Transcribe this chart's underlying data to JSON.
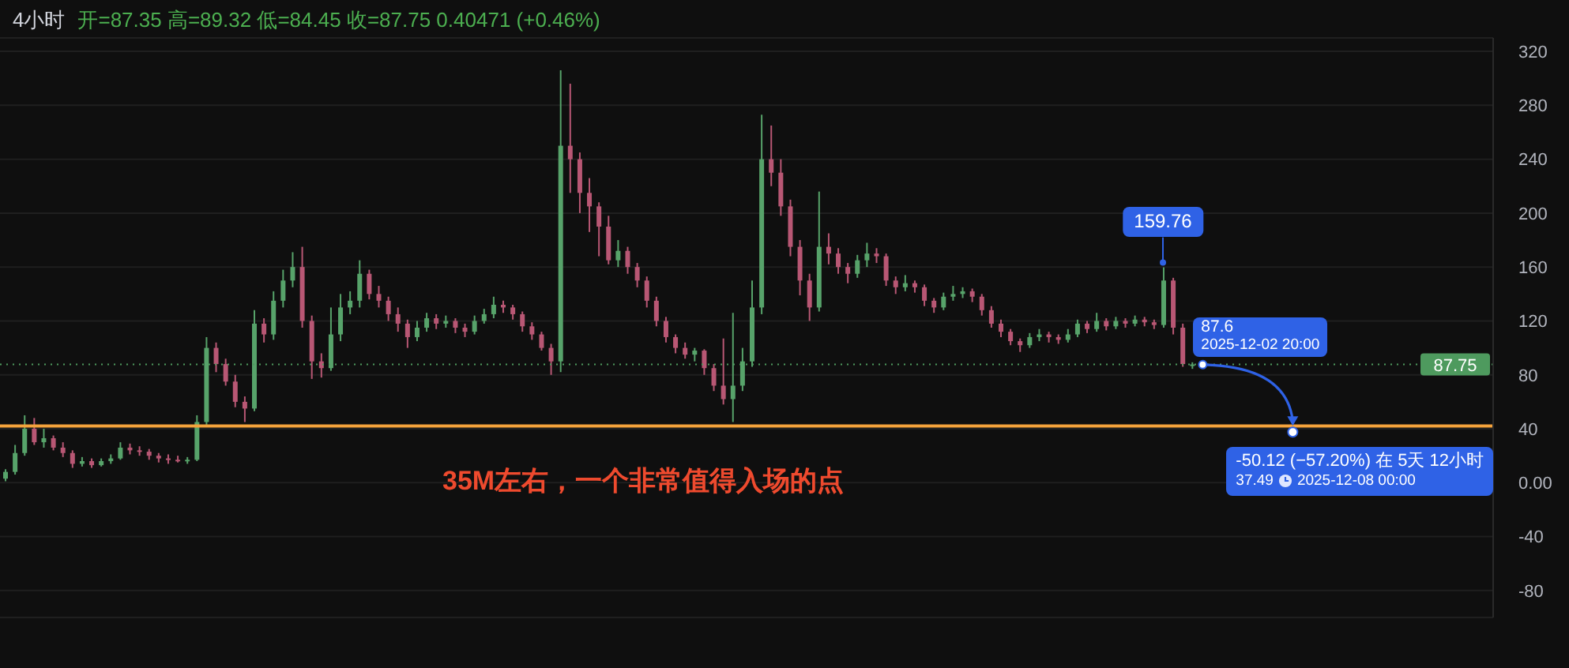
{
  "chart_data": {
    "type": "candlestick",
    "title": "4小时",
    "subtitle": "开=87.35 高=89.32 低=84.45 收=87.75 0.40471 (+0.46%)",
    "categories": [
      null,
      null,
      null,
      null,
      null,
      null,
      null,
      null,
      null,
      null,
      null,
      null,
      null,
      null,
      null,
      null,
      null,
      null,
      null,
      null,
      null,
      null,
      null,
      null,
      null,
      null,
      null,
      null,
      null,
      null,
      null,
      null,
      null,
      null,
      null,
      null,
      null,
      null,
      null,
      null,
      null,
      null,
      null,
      null,
      null,
      null,
      null,
      null,
      null,
      null,
      null,
      null,
      null,
      null,
      null,
      null,
      null,
      null,
      null,
      null,
      null,
      null,
      null,
      null,
      null,
      null,
      null,
      null,
      null,
      null,
      null,
      null,
      null,
      null,
      null,
      null,
      null,
      null,
      null,
      null,
      null,
      null,
      null,
      null,
      null,
      null,
      null,
      null,
      null,
      null,
      null,
      null,
      null,
      null,
      null,
      null,
      null,
      null,
      null,
      null,
      null,
      null,
      null,
      null,
      null,
      null,
      null,
      null,
      null,
      null,
      null,
      null,
      null,
      null,
      null,
      null,
      null,
      null,
      null,
      null,
      null,
      null,
      null,
      null,
      null,
      null,
      null,
      null,
      null,
      null,
      null,
      null,
      null,
      null,
      null,
      null,
      null,
      null,
      null,
      null,
      null,
      null,
      null,
      null,
      null,
      null,
      null,
      null,
      null,
      null,
      null,
      null,
      null,
      null,
      null,
      null
    ],
    "ohlc": [
      [
        3,
        10,
        1,
        8
      ],
      [
        8,
        28,
        6,
        22
      ],
      [
        22,
        50,
        20,
        40
      ],
      [
        40,
        48,
        28,
        30
      ],
      [
        30,
        40,
        26,
        33
      ],
      [
        33,
        35,
        24,
        26
      ],
      [
        26,
        30,
        19,
        22
      ],
      [
        22,
        24,
        11,
        14
      ],
      [
        14,
        19,
        12,
        16
      ],
      [
        16,
        18,
        11,
        13
      ],
      [
        13,
        18,
        12,
        16
      ],
      [
        16,
        21,
        14,
        18
      ],
      [
        18,
        30,
        17,
        26
      ],
      [
        26,
        29,
        21,
        24
      ],
      [
        24,
        27,
        20,
        23
      ],
      [
        23,
        25,
        17,
        20
      ],
      [
        20,
        22,
        15,
        18
      ],
      [
        18,
        21,
        14,
        17
      ],
      [
        17,
        20,
        15,
        16
      ],
      [
        16,
        19,
        14,
        17
      ],
      [
        17,
        50,
        16,
        45
      ],
      [
        45,
        108,
        43,
        100
      ],
      [
        100,
        104,
        82,
        88
      ],
      [
        88,
        92,
        72,
        75
      ],
      [
        75,
        80,
        56,
        60
      ],
      [
        60,
        64,
        45,
        55
      ],
      [
        55,
        128,
        53,
        118
      ],
      [
        118,
        122,
        104,
        110
      ],
      [
        110,
        142,
        106,
        135
      ],
      [
        135,
        158,
        130,
        150
      ],
      [
        150,
        171,
        145,
        160
      ],
      [
        160,
        175,
        115,
        120
      ],
      [
        120,
        124,
        77,
        90
      ],
      [
        90,
        96,
        78,
        85
      ],
      [
        85,
        130,
        83,
        110
      ],
      [
        110,
        140,
        105,
        130
      ],
      [
        130,
        142,
        125,
        135
      ],
      [
        135,
        165,
        130,
        155
      ],
      [
        155,
        158,
        136,
        140
      ],
      [
        140,
        146,
        130,
        135
      ],
      [
        135,
        138,
        120,
        125
      ],
      [
        125,
        130,
        112,
        118
      ],
      [
        118,
        121,
        100,
        108
      ],
      [
        108,
        120,
        105,
        115
      ],
      [
        115,
        126,
        112,
        122
      ],
      [
        122,
        125,
        114,
        118
      ],
      [
        118,
        124,
        115,
        120
      ],
      [
        120,
        122,
        111,
        115
      ],
      [
        115,
        118,
        108,
        112
      ],
      [
        112,
        124,
        110,
        120
      ],
      [
        120,
        129,
        118,
        125
      ],
      [
        125,
        138,
        122,
        132
      ],
      [
        132,
        135,
        126,
        130
      ],
      [
        130,
        132,
        121,
        125
      ],
      [
        125,
        127,
        112,
        116
      ],
      [
        116,
        119,
        106,
        110
      ],
      [
        110,
        112,
        98,
        100
      ],
      [
        100,
        103,
        80,
        90
      ],
      [
        90,
        306,
        82,
        250
      ],
      [
        250,
        296,
        215,
        240
      ],
      [
        240,
        245,
        200,
        215
      ],
      [
        215,
        226,
        186,
        205
      ],
      [
        205,
        208,
        168,
        190
      ],
      [
        190,
        198,
        162,
        165
      ],
      [
        165,
        180,
        160,
        172
      ],
      [
        172,
        175,
        155,
        160
      ],
      [
        160,
        163,
        145,
        150
      ],
      [
        150,
        153,
        130,
        135
      ],
      [
        135,
        138,
        116,
        120
      ],
      [
        120,
        123,
        104,
        108
      ],
      [
        108,
        110,
        96,
        100
      ],
      [
        100,
        104,
        92,
        95
      ],
      [
        95,
        100,
        90,
        98
      ],
      [
        98,
        99,
        80,
        85
      ],
      [
        85,
        88,
        68,
        72
      ],
      [
        72,
        107,
        58,
        62
      ],
      [
        62,
        126,
        45,
        72
      ],
      [
        72,
        100,
        68,
        90
      ],
      [
        90,
        150,
        86,
        130
      ],
      [
        130,
        273,
        125,
        240
      ],
      [
        240,
        265,
        220,
        230
      ],
      [
        230,
        240,
        198,
        205
      ],
      [
        205,
        210,
        168,
        175
      ],
      [
        175,
        180,
        139,
        150
      ],
      [
        150,
        155,
        120,
        130
      ],
      [
        130,
        216,
        127,
        175
      ],
      [
        175,
        185,
        162,
        170
      ],
      [
        170,
        174,
        155,
        160
      ],
      [
        160,
        163,
        148,
        155
      ],
      [
        155,
        169,
        152,
        165
      ],
      [
        165,
        178,
        160,
        170
      ],
      [
        170,
        174,
        163,
        168
      ],
      [
        168,
        170,
        146,
        150
      ],
      [
        150,
        153,
        140,
        145
      ],
      [
        145,
        154,
        142,
        148
      ],
      [
        148,
        150,
        141,
        145
      ],
      [
        145,
        147,
        131,
        135
      ],
      [
        135,
        137,
        126,
        130
      ],
      [
        130,
        141,
        128,
        138
      ],
      [
        138,
        146,
        135,
        140
      ],
      [
        140,
        145,
        137,
        142
      ],
      [
        142,
        144,
        134,
        138
      ],
      [
        138,
        140,
        124,
        128
      ],
      [
        128,
        131,
        115,
        118
      ],
      [
        118,
        121,
        108,
        112
      ],
      [
        112,
        114,
        102,
        105
      ],
      [
        105,
        107,
        97,
        102
      ],
      [
        102,
        111,
        100,
        108
      ],
      [
        108,
        114,
        105,
        110
      ],
      [
        110,
        112,
        104,
        108
      ],
      [
        108,
        110,
        103,
        106
      ],
      [
        106,
        114,
        104,
        110
      ],
      [
        110,
        121,
        108,
        118
      ],
      [
        118,
        120,
        111,
        114
      ],
      [
        114,
        126,
        112,
        120
      ],
      [
        120,
        122,
        113,
        116
      ],
      [
        116,
        123,
        114,
        120
      ],
      [
        120,
        122,
        115,
        118
      ],
      [
        118,
        124,
        116,
        121
      ],
      [
        121,
        123,
        116,
        119
      ],
      [
        119,
        121,
        114,
        117
      ],
      [
        117,
        159.76,
        115,
        150
      ],
      [
        150,
        152,
        110,
        115
      ],
      [
        115,
        118,
        86,
        88
      ],
      [
        87.35,
        89.32,
        84.45,
        87.75
      ],
      null,
      null,
      null,
      null,
      null,
      null,
      null,
      null,
      null,
      null,
      null,
      null,
      null,
      null,
      null,
      null,
      null,
      null,
      null,
      null,
      null,
      null,
      null,
      null,
      null,
      null,
      null,
      null,
      null,
      null,
      null
    ],
    "colors": [
      "#57a36a",
      "#57a36a",
      "#57a36a",
      "#b85774",
      "#57a36a",
      "#b85774",
      "#b85774",
      "#b85774",
      "#57a36a",
      "#b85774",
      "#57a36a",
      "#57a36a",
      "#57a36a",
      "#b85774",
      "#b85774",
      "#b85774",
      "#b85774",
      "#b85774",
      "#b85774",
      "#57a36a",
      "#57a36a",
      "#57a36a",
      "#b85774",
      "#b85774",
      "#b85774",
      "#b85774",
      "#57a36a",
      "#b85774",
      "#57a36a",
      "#57a36a",
      "#57a36a",
      "#b85774",
      "#b85774",
      "#b85774",
      "#57a36a",
      "#57a36a",
      "#57a36a",
      "#57a36a",
      "#b85774",
      "#b85774",
      "#b85774",
      "#b85774",
      "#b85774",
      "#57a36a",
      "#57a36a",
      "#b85774",
      "#57a36a",
      "#b85774",
      "#b85774",
      "#57a36a",
      "#57a36a",
      "#57a36a",
      "#b85774",
      "#b85774",
      "#b85774",
      "#b85774",
      "#b85774",
      "#b85774",
      "#57a36a",
      "#b85774",
      "#b85774",
      "#b85774",
      "#b85774",
      "#b85774",
      "#57a36a",
      "#b85774",
      "#b85774",
      "#b85774",
      "#b85774",
      "#b85774",
      "#b85774",
      "#b85774",
      "#57a36a",
      "#b85774",
      "#b85774",
      "#b85774",
      "#57a36a",
      "#57a36a",
      "#57a36a",
      "#57a36a",
      "#b85774",
      "#b85774",
      "#b85774",
      "#b85774",
      "#b85774",
      "#57a36a",
      "#b85774",
      "#b85774",
      "#b85774",
      "#57a36a",
      "#57a36a",
      "#b85774",
      "#b85774",
      "#b85774",
      "#57a36a",
      "#b85774",
      "#b85774",
      "#b85774",
      "#57a36a",
      "#57a36a",
      "#57a36a",
      "#b85774",
      "#b85774",
      "#b85774",
      "#b85774",
      "#b85774",
      "#b85774",
      "#57a36a",
      "#57a36a",
      "#b85774",
      "#b85774",
      "#57a36a",
      "#57a36a",
      "#b85774",
      "#57a36a",
      "#b85774",
      "#57a36a",
      "#b85774",
      "#57a36a",
      "#b85774",
      "#b85774",
      "#57a36a",
      "#b85774",
      "#b85774",
      "#57a36a",
      null,
      null,
      null,
      null,
      null,
      null,
      null,
      null,
      null,
      null,
      null,
      null,
      null,
      null,
      null,
      null,
      null,
      null,
      null,
      null,
      null,
      null,
      null,
      null,
      null,
      null,
      null,
      null,
      null,
      null,
      null
    ],
    "ylim": [
      -100,
      330
    ],
    "yticks": [
      -80,
      -40,
      {
        "value": 0,
        "label": "0.00"
      },
      40,
      80,
      120,
      160,
      200,
      240,
      280,
      320
    ],
    "grid": "y",
    "tick_labels": "y",
    "ref_lines": [
      {
        "axis": "y",
        "value": 42,
        "color": "#f5a33c"
      },
      {
        "axis": "y",
        "value": 87.75,
        "label": "87.75",
        "color": "#4e9a5e",
        "line_style": "dotted"
      }
    ],
    "annotations": [
      {
        "text": "159.76",
        "y": 159.76
      },
      {
        "text": "87.6",
        "y": 87.6
      },
      "2025-12-02 20:00",
      "-50.12 (−57.20%) 在 5天 12小时",
      {
        "text": "37.49",
        "y": 37.49
      },
      "2025-12-08 00:00",
      "35M左右，一个非常值得入场的点"
    ]
  }
}
